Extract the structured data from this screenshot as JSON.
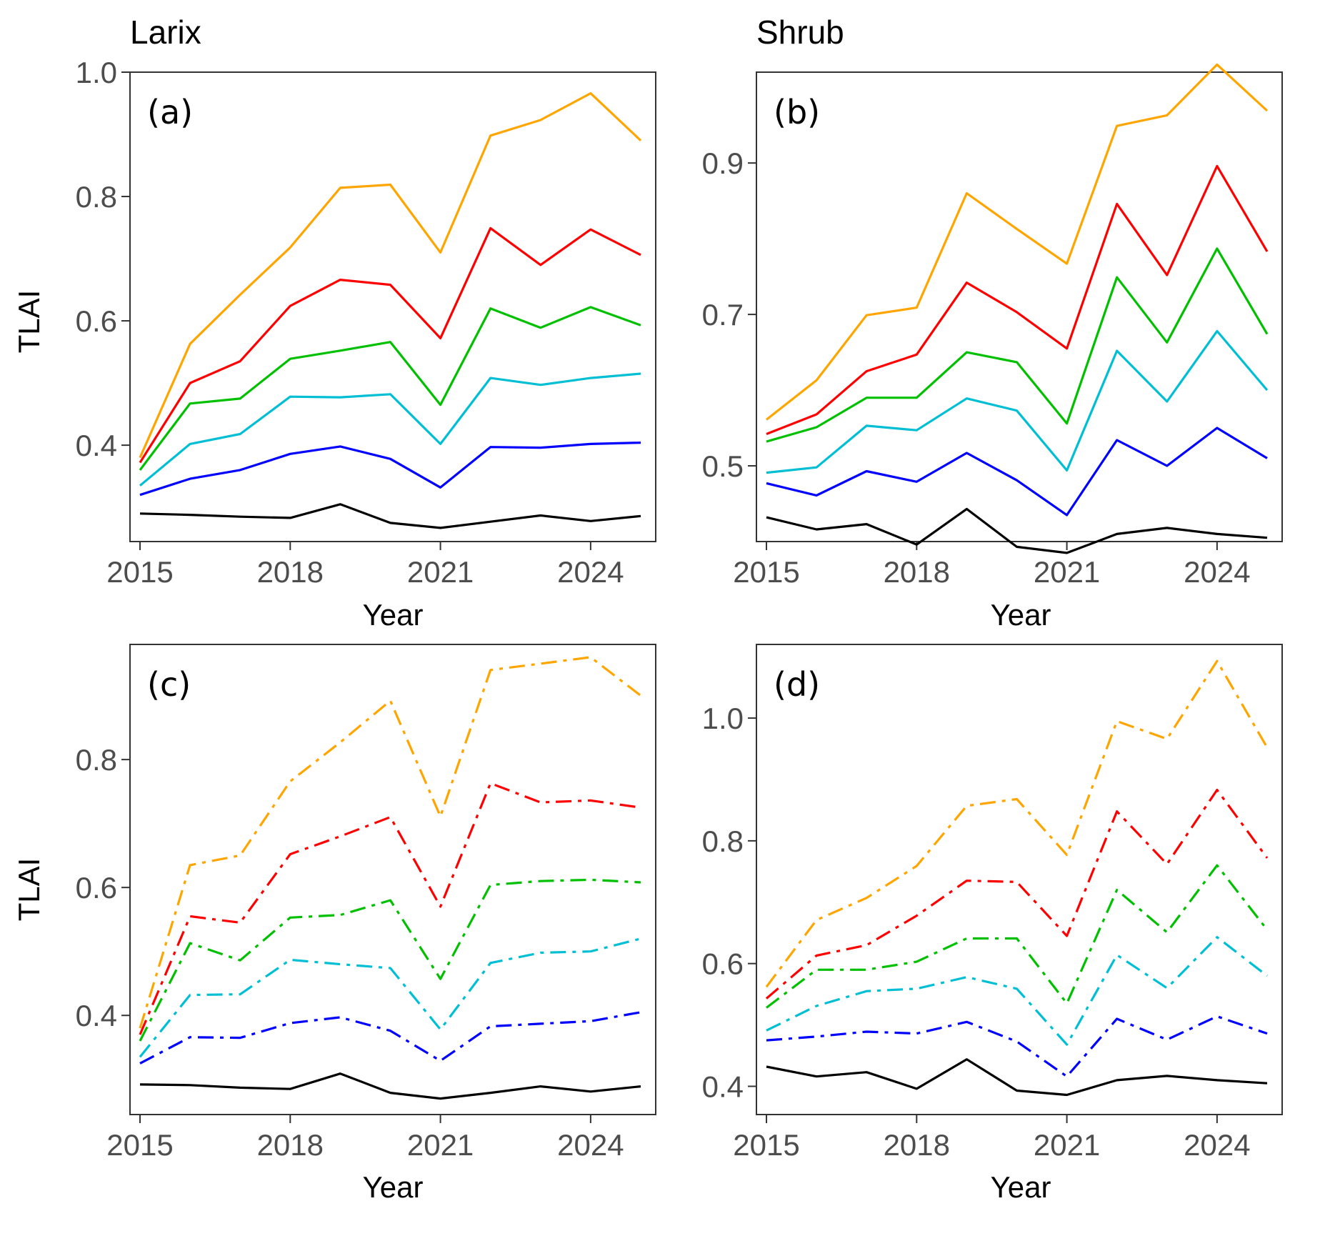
{
  "column_titles": [
    "Larix",
    "Shrub"
  ],
  "colors": {
    "black": "#000000",
    "blue": "#0000ff",
    "cyan": "#00bfd4",
    "green": "#00c000",
    "red": "#ff0000",
    "orange": "#ffa500"
  },
  "chart_data": [
    {
      "type": "line",
      "panel_label": "(a)",
      "column_title": "Larix",
      "xlabel": "Year",
      "ylabel": "TLAI",
      "line_style": "solid",
      "xlim": [
        2014.8,
        2025.3
      ],
      "ylim": [
        0.245,
        1.0
      ],
      "x_ticks": [
        2015,
        2018,
        2021,
        2024
      ],
      "y_ticks": [
        0.4,
        0.6,
        0.8,
        1.0
      ],
      "y_tick_labels": [
        "0.4",
        "0.6",
        "0.8",
        "1.0"
      ],
      "x": [
        2015,
        2016,
        2017,
        2018,
        2019,
        2020,
        2021,
        2022,
        2023,
        2024,
        2025
      ],
      "series": [
        {
          "color": "black",
          "values": [
            0.29,
            0.288,
            0.285,
            0.283,
            0.305,
            0.275,
            0.267,
            0.277,
            0.287,
            0.278,
            0.286
          ]
        },
        {
          "color": "blue",
          "values": [
            0.32,
            0.346,
            0.36,
            0.386,
            0.398,
            0.378,
            0.332,
            0.397,
            0.396,
            0.402,
            0.404
          ]
        },
        {
          "color": "cyan",
          "values": [
            0.335,
            0.402,
            0.418,
            0.478,
            0.477,
            0.482,
            0.402,
            0.508,
            0.497,
            0.508,
            0.515
          ]
        },
        {
          "color": "green",
          "values": [
            0.36,
            0.467,
            0.475,
            0.539,
            0.552,
            0.566,
            0.465,
            0.62,
            0.589,
            0.622,
            0.593
          ]
        },
        {
          "color": "red",
          "values": [
            0.372,
            0.5,
            0.535,
            0.624,
            0.666,
            0.658,
            0.572,
            0.749,
            0.69,
            0.747,
            0.706
          ]
        },
        {
          "color": "orange",
          "values": [
            0.38,
            0.563,
            0.642,
            0.718,
            0.814,
            0.819,
            0.71,
            0.898,
            0.923,
            0.966,
            0.89
          ]
        }
      ]
    },
    {
      "type": "line",
      "panel_label": "(b)",
      "column_title": "Shrub",
      "xlabel": "Year",
      "ylabel": "",
      "line_style": "solid",
      "xlim": [
        2014.8,
        2025.3
      ],
      "ylim": [
        0.4,
        1.02
      ],
      "x_ticks": [
        2015,
        2018,
        2021,
        2024
      ],
      "y_ticks": [
        0.5,
        0.7,
        0.9
      ],
      "y_tick_labels": [
        "0.5",
        "0.7",
        "0.9"
      ],
      "x": [
        2015,
        2016,
        2017,
        2018,
        2019,
        2020,
        2021,
        2022,
        2023,
        2024,
        2025
      ],
      "series": [
        {
          "color": "black",
          "values": [
            0.432,
            0.416,
            0.423,
            0.396,
            0.443,
            0.393,
            0.385,
            0.41,
            0.418,
            0.41,
            0.405
          ]
        },
        {
          "color": "blue",
          "values": [
            0.477,
            0.461,
            0.493,
            0.479,
            0.517,
            0.481,
            0.435,
            0.534,
            0.5,
            0.55,
            0.51
          ]
        },
        {
          "color": "cyan",
          "values": [
            0.491,
            0.498,
            0.553,
            0.547,
            0.589,
            0.573,
            0.494,
            0.652,
            0.585,
            0.678,
            0.6
          ]
        },
        {
          "color": "green",
          "values": [
            0.532,
            0.551,
            0.59,
            0.59,
            0.65,
            0.637,
            0.556,
            0.749,
            0.663,
            0.787,
            0.674
          ]
        },
        {
          "color": "red",
          "values": [
            0.542,
            0.568,
            0.625,
            0.647,
            0.742,
            0.703,
            0.655,
            0.846,
            0.752,
            0.896,
            0.783
          ]
        },
        {
          "color": "orange",
          "values": [
            0.561,
            0.613,
            0.699,
            0.709,
            0.86,
            0.813,
            0.767,
            0.949,
            0.963,
            1.03,
            0.969
          ]
        }
      ]
    },
    {
      "type": "line",
      "panel_label": "(c)",
      "column_title": "",
      "xlabel": "Year",
      "ylabel": "TLAI",
      "line_style": "dashdot",
      "xlim": [
        2014.8,
        2025.3
      ],
      "ylim": [
        0.245,
        0.98
      ],
      "x_ticks": [
        2015,
        2018,
        2021,
        2024
      ],
      "y_ticks": [
        0.4,
        0.6,
        0.8
      ],
      "y_tick_labels": [
        "0.4",
        "0.6",
        "0.8"
      ],
      "x": [
        2015,
        2016,
        2017,
        2018,
        2019,
        2020,
        2021,
        2022,
        2023,
        2024,
        2025
      ],
      "series": [
        {
          "color": "black",
          "values": [
            0.292,
            0.291,
            0.287,
            0.285,
            0.309,
            0.279,
            0.27,
            0.279,
            0.289,
            0.281,
            0.289
          ]
        },
        {
          "color": "blue",
          "values": [
            0.325,
            0.366,
            0.365,
            0.388,
            0.397,
            0.376,
            0.329,
            0.383,
            0.387,
            0.391,
            0.405
          ]
        },
        {
          "color": "cyan",
          "values": [
            0.335,
            0.432,
            0.433,
            0.487,
            0.48,
            0.474,
            0.378,
            0.482,
            0.498,
            0.5,
            0.52
          ]
        },
        {
          "color": "green",
          "values": [
            0.36,
            0.513,
            0.486,
            0.553,
            0.557,
            0.58,
            0.457,
            0.604,
            0.61,
            0.612,
            0.608
          ]
        },
        {
          "color": "red",
          "values": [
            0.37,
            0.555,
            0.545,
            0.652,
            0.68,
            0.71,
            0.57,
            0.763,
            0.733,
            0.736,
            0.725
          ]
        },
        {
          "color": "orange",
          "values": [
            0.38,
            0.635,
            0.65,
            0.766,
            0.827,
            0.892,
            0.711,
            0.94,
            0.95,
            0.96,
            0.9
          ]
        }
      ]
    },
    {
      "type": "line",
      "panel_label": "(d)",
      "column_title": "",
      "xlabel": "Year",
      "ylabel": "",
      "line_style": "dashdot",
      "xlim": [
        2014.8,
        2025.3
      ],
      "ylim": [
        0.354,
        1.12
      ],
      "x_ticks": [
        2015,
        2018,
        2021,
        2024
      ],
      "y_ticks": [
        0.4,
        0.6,
        0.8,
        1.0
      ],
      "y_tick_labels": [
        "0.4",
        "0.6",
        "0.8",
        "1.0"
      ],
      "x": [
        2015,
        2016,
        2017,
        2018,
        2019,
        2020,
        2021,
        2022,
        2023,
        2024,
        2025
      ],
      "series": [
        {
          "color": "black",
          "values": [
            0.432,
            0.416,
            0.423,
            0.396,
            0.444,
            0.393,
            0.386,
            0.41,
            0.417,
            0.41,
            0.405
          ]
        },
        {
          "color": "blue",
          "values": [
            0.475,
            0.481,
            0.489,
            0.486,
            0.505,
            0.473,
            0.416,
            0.51,
            0.476,
            0.514,
            0.486
          ]
        },
        {
          "color": "cyan",
          "values": [
            0.491,
            0.531,
            0.555,
            0.559,
            0.578,
            0.559,
            0.468,
            0.614,
            0.56,
            0.643,
            0.58
          ]
        },
        {
          "color": "green",
          "values": [
            0.528,
            0.59,
            0.59,
            0.603,
            0.641,
            0.641,
            0.535,
            0.72,
            0.651,
            0.76,
            0.655
          ]
        },
        {
          "color": "red",
          "values": [
            0.543,
            0.613,
            0.63,
            0.678,
            0.735,
            0.733,
            0.645,
            0.848,
            0.762,
            0.883,
            0.772
          ]
        },
        {
          "color": "orange",
          "values": [
            0.562,
            0.671,
            0.707,
            0.759,
            0.857,
            0.868,
            0.777,
            0.995,
            0.966,
            1.093,
            0.952
          ]
        }
      ]
    }
  ]
}
